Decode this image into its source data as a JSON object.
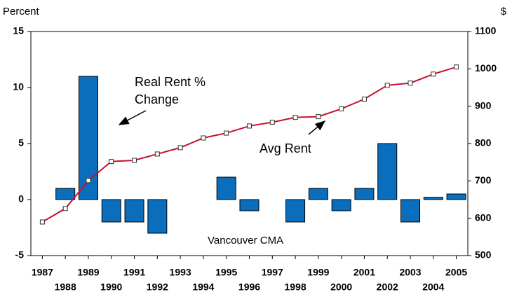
{
  "chart_data": {
    "type": "bar",
    "ylabel": "Percent",
    "y2label": "$",
    "categories": [
      "1987",
      "1988",
      "1989",
      "1990",
      "1991",
      "1992",
      "1993",
      "1994",
      "1995",
      "1996",
      "1997",
      "1998",
      "1999",
      "2000",
      "2001",
      "2002",
      "2003",
      "2004",
      "2005"
    ],
    "series": [
      {
        "type": "bar",
        "color": "#0a6ebd",
        "values": [
          0,
          1,
          11,
          -2,
          -2,
          -3,
          0,
          0,
          2,
          -1,
          0,
          -2,
          1,
          -1,
          1,
          5,
          -2,
          0.2,
          0.5
        ]
      },
      {
        "type": "line",
        "axis": "y2",
        "color": "#c8102e",
        "values": [
          590,
          626,
          701,
          752,
          755,
          772,
          789,
          815,
          828,
          847,
          857,
          870,
          872,
          893,
          919,
          956,
          962,
          986,
          1005
        ]
      }
    ],
    "ylim": [
      -5,
      15
    ],
    "yticks": [
      -5,
      0,
      5,
      10,
      15
    ],
    "y2lim": [
      500,
      1100
    ],
    "y2ticks": [
      500,
      600,
      700,
      800,
      900,
      1000,
      1100
    ],
    "annotations": [
      {
        "lines": [
          "Real Rent %",
          "Change"
        ]
      },
      {
        "text": "Avg Rent"
      },
      {
        "text": "Vancouver CMA"
      }
    ]
  }
}
